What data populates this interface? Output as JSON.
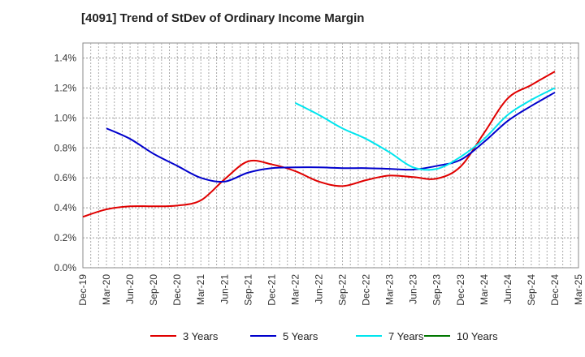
{
  "chart_data": {
    "type": "line",
    "title": "[4091]  Trend of StDev of Ordinary Income Margin",
    "xlabel": "",
    "ylabel": "",
    "x_labels": [
      "Dec-19",
      "Mar-20",
      "Jun-20",
      "Sep-20",
      "Dec-20",
      "Mar-21",
      "Jun-21",
      "Sep-21",
      "Dec-21",
      "Mar-22",
      "Jun-22",
      "Sep-22",
      "Dec-22",
      "Mar-23",
      "Jun-23",
      "Sep-23",
      "Dec-23",
      "Mar-24",
      "Jun-24",
      "Sep-24",
      "Dec-24",
      "Mar-25"
    ],
    "y_ticks": [
      "0.0%",
      "0.2%",
      "0.4%",
      "0.6%",
      "0.8%",
      "1.0%",
      "1.2%",
      "1.4%"
    ],
    "ylim": [
      0,
      1.5
    ],
    "grid": true,
    "legend_position": "bottom",
    "series": [
      {
        "name": "3 Years",
        "color": "#e00000",
        "values": [
          0.34,
          0.39,
          0.41,
          0.41,
          0.415,
          0.45,
          0.59,
          0.71,
          0.69,
          0.645,
          0.575,
          0.545,
          0.585,
          0.615,
          0.605,
          0.595,
          0.675,
          0.9,
          1.13,
          1.22,
          1.31,
          null
        ]
      },
      {
        "name": "5 Years",
        "color": "#0000cc",
        "values": [
          null,
          0.93,
          0.86,
          0.76,
          0.68,
          0.6,
          0.575,
          0.635,
          0.665,
          0.67,
          0.67,
          0.665,
          0.665,
          0.66,
          0.655,
          0.68,
          0.72,
          0.84,
          0.98,
          1.08,
          1.17,
          null
        ]
      },
      {
        "name": "7 Years",
        "color": "#00e5ee",
        "values": [
          null,
          null,
          null,
          null,
          null,
          null,
          null,
          null,
          null,
          1.1,
          1.02,
          0.93,
          0.86,
          0.77,
          0.67,
          0.66,
          0.74,
          0.86,
          1.02,
          1.12,
          1.2,
          null
        ]
      },
      {
        "name": "10 Years",
        "color": "#007700",
        "values": [
          null,
          null,
          null,
          null,
          null,
          null,
          null,
          null,
          null,
          null,
          null,
          null,
          null,
          null,
          null,
          null,
          null,
          null,
          null,
          null,
          null,
          null
        ]
      }
    ]
  }
}
